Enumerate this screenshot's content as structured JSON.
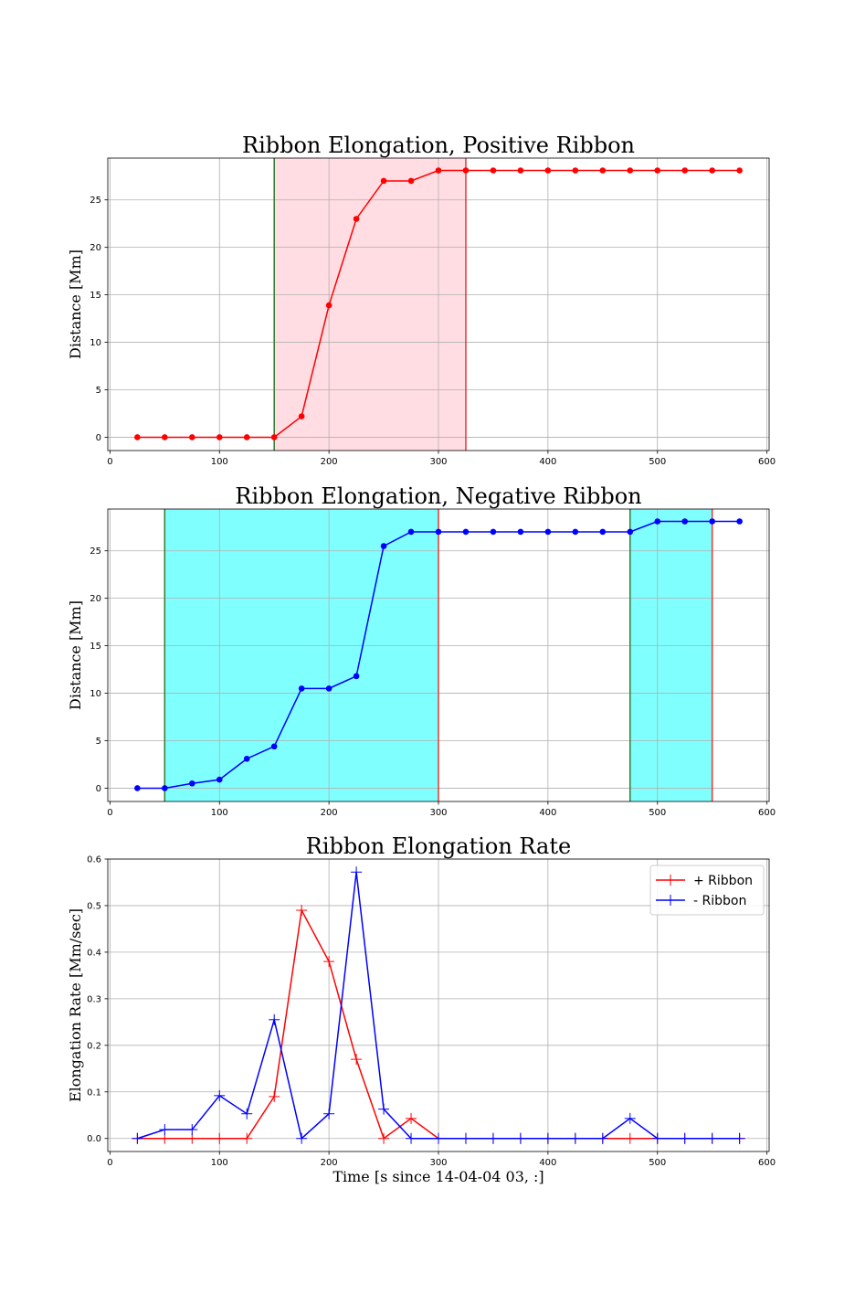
{
  "chart_data": [
    {
      "type": "line",
      "title": "Ribbon Elongation, Positive Ribbon",
      "xlabel": "",
      "ylabel": "Distance [Mm]",
      "xlim": [
        -2,
        602
      ],
      "ylim": [
        -1.4,
        29.4
      ],
      "xticks": [
        0,
        100,
        200,
        300,
        400,
        500,
        600
      ],
      "yticks": [
        0,
        5,
        10,
        15,
        20,
        25
      ],
      "grid": true,
      "marker": "circle",
      "shaded_regions": [
        {
          "x0": 150,
          "x1": 325,
          "fill": "#ffdde3",
          "start_line": "#2e7d32",
          "end_line": "#e53935"
        }
      ],
      "series": [
        {
          "color": "#ff0000",
          "x": [
            25,
            50,
            75,
            100,
            125,
            150,
            175,
            200,
            225,
            250,
            275,
            300,
            325,
            350,
            375,
            400,
            425,
            450,
            475,
            500,
            525,
            550,
            575
          ],
          "values": [
            0,
            0,
            0,
            0,
            0,
            0,
            2.2,
            13.9,
            23.0,
            27.0,
            27.0,
            28.1,
            28.1,
            28.1,
            28.1,
            28.1,
            28.1,
            28.1,
            28.1,
            28.1,
            28.1,
            28.1,
            28.1
          ]
        }
      ]
    },
    {
      "type": "line",
      "title": "Ribbon Elongation, Negative Ribbon",
      "xlabel": "",
      "ylabel": "Distance [Mm]",
      "xlim": [
        -2,
        602
      ],
      "ylim": [
        -1.4,
        29.4
      ],
      "xticks": [
        0,
        100,
        200,
        300,
        400,
        500,
        600
      ],
      "yticks": [
        0,
        5,
        10,
        15,
        20,
        25
      ],
      "grid": true,
      "marker": "circle",
      "shaded_regions": [
        {
          "x0": 50,
          "x1": 300,
          "fill": "#80ffff",
          "start_line": "#2e7d32",
          "end_line": "#e53935"
        },
        {
          "x0": 475,
          "x1": 550,
          "fill": "#80ffff",
          "start_line": "#2e7d32",
          "end_line": "#e53935"
        }
      ],
      "series": [
        {
          "color": "#0000ff",
          "x": [
            25,
            50,
            75,
            100,
            125,
            150,
            175,
            200,
            225,
            250,
            275,
            300,
            325,
            350,
            375,
            400,
            425,
            450,
            475,
            500,
            525,
            550,
            575
          ],
          "values": [
            0,
            0,
            0.5,
            0.9,
            3.1,
            4.4,
            10.5,
            10.5,
            11.8,
            25.5,
            27.0,
            27.0,
            27.0,
            27.0,
            27.0,
            27.0,
            27.0,
            27.0,
            27.0,
            28.1,
            28.1,
            28.1,
            28.1
          ]
        }
      ]
    },
    {
      "type": "line",
      "title": "Ribbon Elongation Rate",
      "xlabel": "Time [s since 14-04-04 03, :]",
      "ylabel": "Elongation Rate [Mm/sec]",
      "xlim": [
        -2,
        602
      ],
      "ylim": [
        -0.028,
        0.6
      ],
      "xticks": [
        0,
        100,
        200,
        300,
        400,
        500,
        600
      ],
      "yticks": [
        0.0,
        0.1,
        0.2,
        0.3,
        0.4,
        0.5,
        0.6
      ],
      "ytick_labels": [
        "0.0",
        "0.1",
        "0.2",
        "0.3",
        "0.4",
        "0.5",
        "0.6"
      ],
      "grid": true,
      "marker": "plus",
      "legend": "top-right",
      "series": [
        {
          "name": "+ Ribbon",
          "color": "#ff0000",
          "x": [
            25,
            50,
            75,
            100,
            125,
            150,
            175,
            200,
            225,
            250,
            275,
            300,
            325,
            350,
            375,
            400,
            425,
            450,
            475,
            500,
            525,
            550,
            575
          ],
          "values": [
            0,
            0,
            0,
            0,
            0,
            0.09,
            0.49,
            0.38,
            0.17,
            0,
            0.043,
            0,
            0,
            0,
            0,
            0,
            0,
            0,
            0,
            0,
            0,
            0,
            0
          ]
        },
        {
          "name": "- Ribbon",
          "color": "#0000ff",
          "x": [
            25,
            50,
            75,
            100,
            125,
            150,
            175,
            200,
            225,
            250,
            275,
            300,
            325,
            350,
            375,
            400,
            425,
            450,
            475,
            500,
            525,
            550,
            575
          ],
          "values": [
            0,
            0.019,
            0.019,
            0.092,
            0.053,
            0.255,
            0,
            0.053,
            0.572,
            0.063,
            0,
            0,
            0,
            0,
            0,
            0,
            0,
            0,
            0.043,
            0,
            0,
            0,
            0
          ]
        }
      ]
    }
  ]
}
